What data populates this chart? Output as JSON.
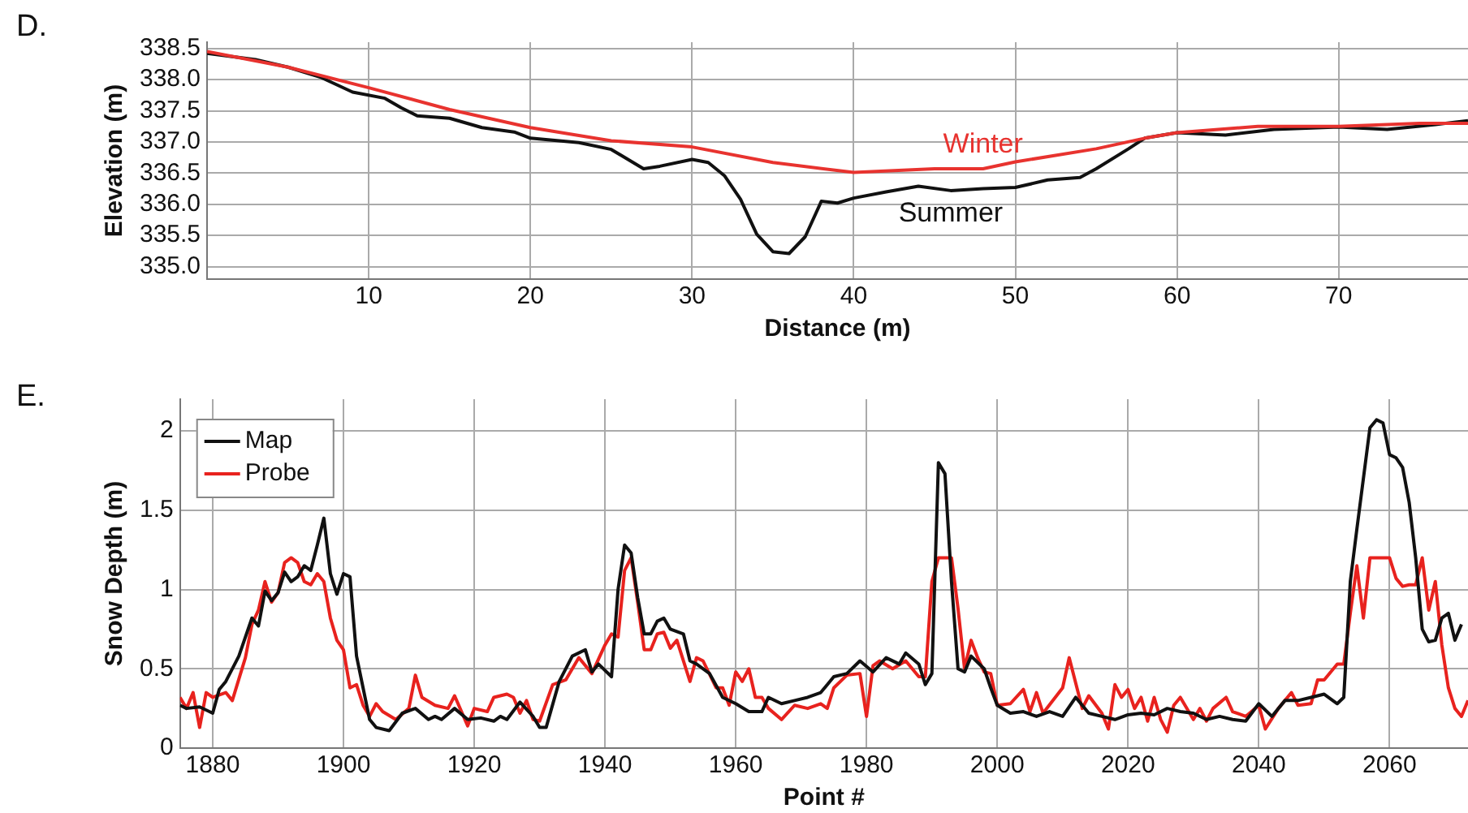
{
  "chart_data": [
    {
      "type": "line",
      "title": "D.",
      "xlabel": "Distance (m)",
      "ylabel": "Elevation (m)",
      "xlim": [
        0,
        78
      ],
      "xticks": [
        10,
        20,
        30,
        40,
        50,
        60,
        70
      ],
      "ylim": [
        334.8,
        338.6
      ],
      "yticks": [
        {
          "value": 335,
          "label": "335.0"
        },
        335.5,
        {
          "value": 336,
          "label": "336.0"
        },
        336.5,
        {
          "value": 337,
          "label": "337.0"
        },
        337.5,
        {
          "value": 338,
          "label": "338.0"
        },
        338.5
      ],
      "grid": true,
      "legend": false,
      "marker": "none",
      "line_style": "solid",
      "series": [
        {
          "name": "Winter",
          "color": "#e8332f",
          "x": [
            0,
            5,
            10,
            15,
            20,
            25,
            30,
            35,
            40,
            45,
            48,
            50,
            55,
            58,
            60,
            65,
            70,
            75,
            78
          ],
          "values": [
            338.45,
            338.2,
            337.87,
            337.52,
            337.23,
            337.02,
            336.92,
            336.67,
            336.51,
            336.57,
            336.57,
            336.68,
            336.89,
            337.06,
            337.15,
            337.25,
            337.25,
            337.3,
            337.3
          ]
        },
        {
          "name": "Summer",
          "color": "#111111",
          "x": [
            0,
            3,
            5,
            7,
            9,
            11,
            12,
            13,
            15,
            17,
            19,
            20,
            23,
            25,
            27,
            28,
            30,
            31,
            32,
            33,
            34,
            35,
            36,
            37,
            38,
            39,
            40,
            42,
            44,
            46,
            48,
            50,
            52,
            54,
            55,
            57,
            58,
            60,
            63,
            66,
            70,
            73,
            76,
            78
          ],
          "values": [
            338.42,
            338.32,
            338.2,
            338.04,
            337.8,
            337.7,
            337.55,
            337.42,
            337.38,
            337.23,
            337.16,
            337.06,
            336.99,
            336.88,
            336.57,
            336.61,
            336.72,
            336.67,
            336.46,
            336.08,
            335.52,
            335.24,
            335.21,
            335.48,
            336.05,
            336.02,
            336.1,
            336.2,
            336.29,
            336.22,
            336.25,
            336.27,
            336.39,
            336.43,
            336.57,
            336.89,
            337.06,
            337.15,
            337.11,
            337.2,
            337.24,
            337.2,
            337.28,
            337.34
          ]
        }
      ]
    },
    {
      "type": "line",
      "title": "E.",
      "xlabel": "Point #",
      "ylabel": "Snow Depth (m)",
      "xlim": [
        1875,
        2072
      ],
      "xticks": [
        1880,
        1900,
        1920,
        1940,
        1960,
        1980,
        2000,
        2020,
        2040,
        2060
      ],
      "ylim": [
        0,
        2.2
      ],
      "yticks": [
        0,
        0.5,
        1,
        1.5,
        2
      ],
      "grid": true,
      "legend": "top left",
      "marker": "none",
      "line_style": "solid",
      "series": [
        {
          "name": "Map",
          "color": "#111111",
          "x": [
            1875,
            1876,
            1878,
            1880,
            1881,
            1882,
            1884,
            1886,
            1887,
            1888,
            1889,
            1890,
            1891,
            1892,
            1893,
            1894,
            1895,
            1896,
            1897,
            1898,
            1899,
            1900,
            1901,
            1902,
            1903,
            1904,
            1905,
            1907,
            1909,
            1911,
            1913,
            1914,
            1915,
            1917,
            1919,
            1921,
            1923,
            1924,
            1925,
            1927,
            1929,
            1930,
            1931,
            1933,
            1935,
            1937,
            1938,
            1939,
            1941,
            1942,
            1943,
            1944,
            1945,
            1946,
            1947,
            1948,
            1949,
            1950,
            1952,
            1953,
            1954,
            1956,
            1958,
            1960,
            1962,
            1964,
            1965,
            1967,
            1969,
            1971,
            1973,
            1975,
            1977,
            1979,
            1981,
            1983,
            1985,
            1986,
            1988,
            1989,
            1990,
            1991,
            1992,
            1993,
            1994,
            1995,
            1996,
            1998,
            1999,
            2000,
            2002,
            2004,
            2006,
            2008,
            2010,
            2012,
            2014,
            2016,
            2018,
            2020,
            2022,
            2024,
            2026,
            2028,
            2030,
            2032,
            2034,
            2036,
            2038,
            2040,
            2042,
            2044,
            2046,
            2048,
            2050,
            2052,
            2053,
            2054,
            2055,
            2057,
            2058,
            2059,
            2060,
            2061,
            2062,
            2063,
            2064,
            2065,
            2066,
            2067,
            2068,
            2069,
            2070,
            2071
          ],
          "values": [
            0.27,
            0.25,
            0.26,
            0.22,
            0.37,
            0.42,
            0.58,
            0.82,
            0.77,
            0.99,
            0.93,
            0.98,
            1.11,
            1.05,
            1.08,
            1.15,
            1.12,
            1.28,
            1.45,
            1.1,
            0.97,
            1.1,
            1.08,
            0.58,
            0.38,
            0.18,
            0.13,
            0.11,
            0.22,
            0.25,
            0.18,
            0.2,
            0.18,
            0.25,
            0.18,
            0.19,
            0.17,
            0.2,
            0.18,
            0.29,
            0.2,
            0.13,
            0.13,
            0.42,
            0.58,
            0.62,
            0.48,
            0.53,
            0.45,
            1.0,
            1.28,
            1.23,
            0.95,
            0.72,
            0.72,
            0.8,
            0.82,
            0.75,
            0.72,
            0.55,
            0.53,
            0.47,
            0.32,
            0.28,
            0.23,
            0.23,
            0.32,
            0.28,
            0.3,
            0.32,
            0.35,
            0.45,
            0.47,
            0.55,
            0.48,
            0.57,
            0.53,
            0.6,
            0.53,
            0.4,
            0.47,
            1.8,
            1.73,
            1.05,
            0.5,
            0.48,
            0.58,
            0.5,
            0.38,
            0.27,
            0.22,
            0.23,
            0.2,
            0.23,
            0.2,
            0.32,
            0.22,
            0.2,
            0.18,
            0.21,
            0.22,
            0.21,
            0.25,
            0.23,
            0.22,
            0.18,
            0.2,
            0.18,
            0.17,
            0.28,
            0.2,
            0.3,
            0.3,
            0.32,
            0.34,
            0.28,
            0.32,
            1.05,
            1.38,
            2.02,
            2.07,
            2.05,
            1.85,
            1.83,
            1.77,
            1.55,
            1.2,
            0.75,
            0.67,
            0.68,
            0.82,
            0.85,
            0.68,
            0.78
          ]
        },
        {
          "name": "Probe",
          "color": "#e8221e",
          "x": [
            1875,
            1876,
            1877,
            1878,
            1879,
            1880,
            1882,
            1883,
            1885,
            1886,
            1887,
            1888,
            1889,
            1890,
            1891,
            1892,
            1893,
            1894,
            1895,
            1896,
            1897,
            1898,
            1899,
            1900,
            1901,
            1902,
            1903,
            1904,
            1905,
            1906,
            1908,
            1910,
            1911,
            1912,
            1914,
            1916,
            1917,
            1919,
            1920,
            1922,
            1923,
            1925,
            1926,
            1927,
            1928,
            1929,
            1930,
            1932,
            1934,
            1936,
            1938,
            1940,
            1941,
            1942,
            1943,
            1944,
            1945,
            1946,
            1947,
            1948,
            1949,
            1950,
            1951,
            1953,
            1954,
            1955,
            1957,
            1958,
            1959,
            1960,
            1961,
            1962,
            1963,
            1964,
            1965,
            1967,
            1969,
            1971,
            1973,
            1974,
            1975,
            1977,
            1979,
            1980,
            1981,
            1982,
            1984,
            1986,
            1988,
            1989,
            1990,
            1991,
            1993,
            1994,
            1995,
            1996,
            1997,
            1998,
            1999,
            2000,
            2002,
            2004,
            2005,
            2006,
            2007,
            2010,
            2011,
            2013,
            2014,
            2016,
            2017,
            2018,
            2019,
            2020,
            2021,
            2022,
            2023,
            2024,
            2025,
            2026,
            2027,
            2028,
            2030,
            2031,
            2032,
            2033,
            2035,
            2036,
            2038,
            2040,
            2041,
            2043,
            2045,
            2046,
            2048,
            2049,
            2050,
            2052,
            2053,
            2054,
            2055,
            2056,
            2057,
            2059,
            2060,
            2061,
            2062,
            2063,
            2064,
            2065,
            2066,
            2067,
            2068,
            2069,
            2070,
            2071,
            2072
          ],
          "values": [
            0.32,
            0.25,
            0.35,
            0.13,
            0.35,
            0.32,
            0.35,
            0.3,
            0.57,
            0.78,
            0.87,
            1.05,
            0.92,
            0.98,
            1.17,
            1.2,
            1.17,
            1.05,
            1.03,
            1.1,
            1.05,
            0.82,
            0.68,
            0.62,
            0.38,
            0.4,
            0.27,
            0.2,
            0.28,
            0.23,
            0.18,
            0.25,
            0.46,
            0.32,
            0.27,
            0.25,
            0.33,
            0.14,
            0.25,
            0.23,
            0.32,
            0.34,
            0.32,
            0.22,
            0.3,
            0.18,
            0.17,
            0.4,
            0.43,
            0.57,
            0.47,
            0.65,
            0.72,
            0.7,
            1.12,
            1.2,
            0.92,
            0.62,
            0.62,
            0.72,
            0.73,
            0.63,
            0.68,
            0.42,
            0.57,
            0.55,
            0.38,
            0.38,
            0.27,
            0.48,
            0.42,
            0.5,
            0.32,
            0.32,
            0.25,
            0.18,
            0.27,
            0.25,
            0.28,
            0.25,
            0.38,
            0.46,
            0.47,
            0.2,
            0.52,
            0.55,
            0.5,
            0.55,
            0.45,
            0.45,
            1.05,
            1.2,
            1.2,
            0.88,
            0.5,
            0.68,
            0.57,
            0.48,
            0.47,
            0.27,
            0.28,
            0.37,
            0.23,
            0.35,
            0.22,
            0.38,
            0.57,
            0.25,
            0.33,
            0.22,
            0.12,
            0.4,
            0.32,
            0.37,
            0.25,
            0.32,
            0.17,
            0.32,
            0.18,
            0.1,
            0.27,
            0.32,
            0.18,
            0.25,
            0.17,
            0.25,
            0.32,
            0.23,
            0.2,
            0.27,
            0.12,
            0.25,
            0.35,
            0.27,
            0.28,
            0.43,
            0.43,
            0.53,
            0.53,
            0.85,
            1.15,
            0.82,
            1.2,
            1.2,
            1.2,
            1.07,
            1.02,
            1.03,
            1.03,
            1.2,
            0.87,
            1.05,
            0.65,
            0.38,
            0.25,
            0.2,
            0.3
          ]
        }
      ]
    }
  ]
}
